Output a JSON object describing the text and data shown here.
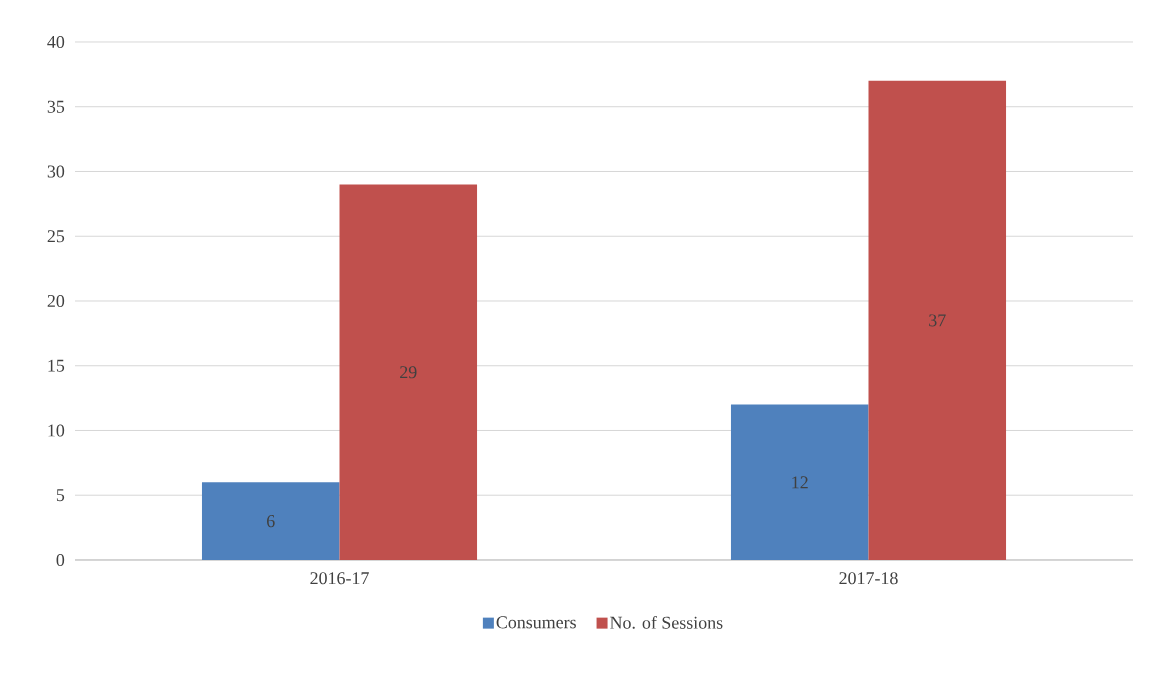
{
  "chart_data": {
    "type": "bar",
    "categories": [
      "2016-17",
      "2017-18"
    ],
    "series": [
      {
        "name": "Consumers",
        "color": "#4f81bd",
        "values": [
          6,
          12
        ]
      },
      {
        "name": "No. of Sessions",
        "color": "#c0504d",
        "values": [
          29,
          37
        ]
      }
    ],
    "ylim": [
      0,
      40
    ],
    "yticks": [
      0,
      5,
      10,
      15,
      20,
      25,
      30,
      35,
      40
    ],
    "grid": "y",
    "legend": "bottom",
    "data_labels": true
  }
}
